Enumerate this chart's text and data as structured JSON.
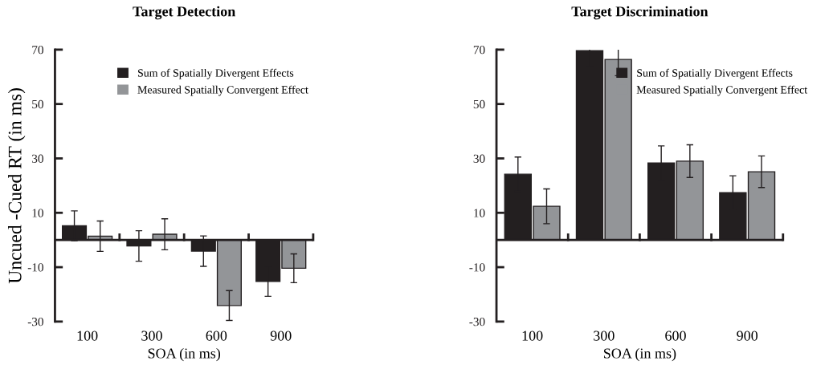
{
  "chart_data": [
    {
      "type": "bar",
      "title": "Target Detection",
      "xlabel": "SOA (in ms)",
      "ylabel": "Uncued -Cued RT (in ms)",
      "categories": [
        "100",
        "300",
        "600",
        "900"
      ],
      "ylim": [
        -30,
        70
      ],
      "yticks": [
        -30,
        -10,
        10,
        30,
        50,
        70
      ],
      "grid": false,
      "legend": "top right",
      "series": [
        {
          "name": "Sum of Spatially Divergent Effects",
          "color": "#231f20",
          "values": [
            5.2,
            -2.2,
            -4.1,
            -15.2
          ],
          "errors": [
            5.5,
            5.6,
            5.6,
            5.5
          ]
        },
        {
          "name": "Measured Spatially Convergent Effect",
          "color": "#939598",
          "values": [
            1.4,
            2.1,
            -24.1,
            -10.4
          ],
          "errors": [
            5.6,
            5.7,
            5.5,
            5.3
          ]
        }
      ]
    },
    {
      "type": "bar",
      "title": "Target Discrimination",
      "xlabel": "SOA (in ms)",
      "categories": [
        "100",
        "300",
        "600",
        "900"
      ],
      "ylim": [
        -30,
        70
      ],
      "yticks": [
        -30,
        -10,
        10,
        30,
        50,
        70
      ],
      "grid": false,
      "legend": "top right",
      "series": [
        {
          "name": "Sum of Spatially Divergent Effects",
          "color": "#231f20",
          "values": [
            24.2,
            69.6,
            28.3,
            17.4
          ],
          "errors": [
            6.3,
            5.8,
            6.3,
            6.2
          ]
        },
        {
          "name": "Measured Spatially Convergent Effect",
          "color": "#939598",
          "values": [
            12.4,
            66.4,
            29.0,
            25.1
          ],
          "errors": [
            6.4,
            6.0,
            6.0,
            5.8
          ]
        }
      ]
    }
  ]
}
